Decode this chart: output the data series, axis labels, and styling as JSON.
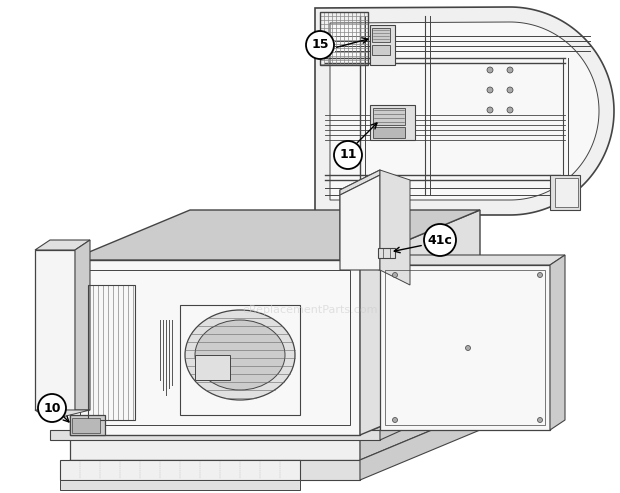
{
  "background_color": "#ffffff",
  "line_color": "#444444",
  "fill_light": "#f0f0f0",
  "fill_mid": "#e0e0e0",
  "fill_dark": "#cccccc",
  "fill_darker": "#b8b8b8",
  "watermark_text": "eReplacementParts.com",
  "watermark_color": "#cccccc",
  "watermark_alpha": 0.55,
  "figsize": [
    6.2,
    4.93
  ],
  "dpi": 100
}
